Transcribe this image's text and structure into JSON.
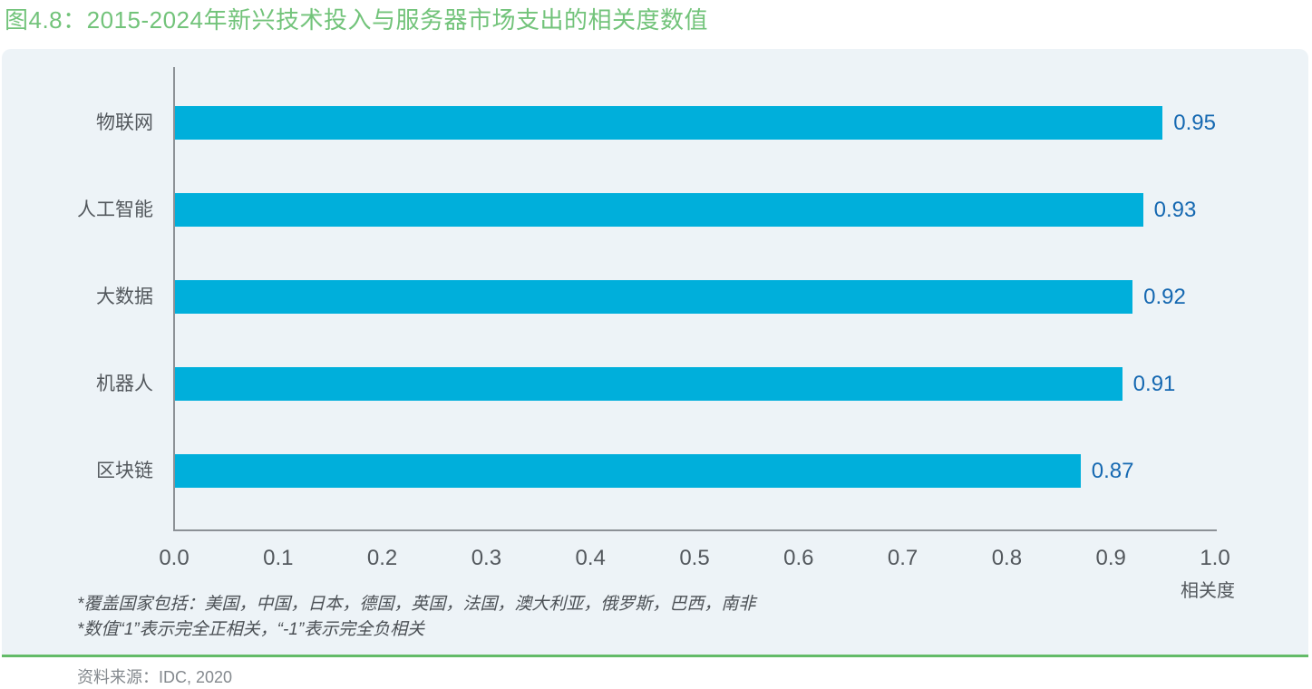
{
  "title": "图4.8：2015-2024年新兴技术投入与服务器市场支出的相关度数值",
  "colors": {
    "title_green": "#72C37A",
    "divider_green": "#63BB68",
    "panel_bg": "#EDF3F7",
    "bar_cyan": "#00AFDB",
    "value_blue": "#1568B1",
    "axis_gray": "#8C9196",
    "text_gray": "#53585D",
    "footnote_gray": "#4C5156",
    "source_gray": "#84898E"
  },
  "chart_data": {
    "type": "bar",
    "orientation": "horizontal",
    "title": "图4.8：2015-2024年新兴技术投入与服务器市场支出的相关度数值",
    "categories": [
      "物联网",
      "人工智能",
      "大数据",
      "机器人",
      "区块链"
    ],
    "values": [
      0.95,
      0.93,
      0.92,
      0.91,
      0.87
    ],
    "data_labels": [
      "0.95",
      "0.93",
      "0.92",
      "0.91",
      "0.87"
    ],
    "xlabel": "相关度",
    "ylabel": "",
    "xlim": [
      0.0,
      1.0
    ],
    "xticks": [
      "0.0",
      "0.1",
      "0.2",
      "0.3",
      "0.4",
      "0.5",
      "0.6",
      "0.7",
      "0.8",
      "0.9",
      "1.0"
    ],
    "grid": false,
    "legend": false
  },
  "footnotes": [
    "*覆盖国家包括：美国，中国，日本，德国，英国，法国，澳大利亚，俄罗斯，巴西，南非",
    "*数值“1”表示完全正相关，“-1”表示完全负相关"
  ],
  "source": "资料来源：IDC, 2020"
}
